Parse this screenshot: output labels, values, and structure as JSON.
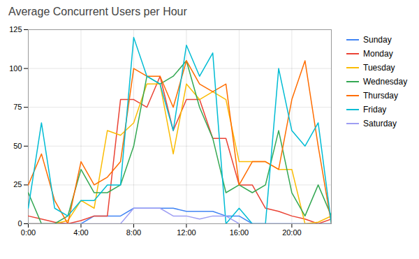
{
  "chart_data": {
    "type": "line",
    "title": "Average Concurrent Users per Hour",
    "x": [
      0,
      1,
      2,
      3,
      4,
      5,
      6,
      7,
      8,
      9,
      10,
      11,
      12,
      13,
      14,
      15,
      16,
      17,
      18,
      19,
      20,
      21,
      22,
      23
    ],
    "xlim": [
      0,
      23
    ],
    "xticks": [
      {
        "value": 0,
        "label": "0:00"
      },
      {
        "value": 4,
        "label": "4:00"
      },
      {
        "value": 8,
        "label": "8:00"
      },
      {
        "value": 12,
        "label": "12:00"
      },
      {
        "value": 16,
        "label": "16:00"
      },
      {
        "value": 20,
        "label": "20:00"
      }
    ],
    "ylim": [
      0,
      125
    ],
    "yticks": [
      0,
      25,
      50,
      75,
      100,
      125
    ],
    "grid": true,
    "legend": "right",
    "series": [
      {
        "name": "Sunday",
        "color": "#4285F4",
        "values": [
          0,
          0,
          0,
          0,
          0,
          5,
          5,
          5,
          10,
          10,
          10,
          10,
          8,
          8,
          8,
          5,
          5,
          0,
          0,
          0,
          0,
          0,
          0,
          0
        ]
      },
      {
        "name": "Monday",
        "color": "#EA4335",
        "values": [
          5,
          3,
          1,
          0,
          2,
          5,
          5,
          80,
          80,
          75,
          95,
          60,
          80,
          80,
          55,
          55,
          25,
          25,
          10,
          8,
          5,
          3,
          0,
          3
        ]
      },
      {
        "name": "Tuesday",
        "color": "#FBBC04",
        "values": [
          0,
          0,
          0,
          2,
          15,
          10,
          60,
          57,
          65,
          90,
          90,
          45,
          90,
          80,
          85,
          80,
          40,
          40,
          40,
          35,
          35,
          0,
          1,
          5
        ]
      },
      {
        "name": "Wednesday",
        "color": "#34A853",
        "values": [
          20,
          0,
          0,
          5,
          35,
          20,
          20,
          25,
          50,
          95,
          90,
          95,
          105,
          75,
          55,
          20,
          25,
          20,
          25,
          60,
          20,
          5,
          25,
          5
        ]
      },
      {
        "name": "Thursday",
        "color": "#FF6D00",
        "values": [
          25,
          45,
          15,
          0,
          40,
          25,
          30,
          40,
          100,
          95,
          95,
          75,
          105,
          90,
          85,
          90,
          25,
          40,
          40,
          35,
          80,
          105,
          50,
          0
        ]
      },
      {
        "name": "Friday",
        "color": "#00BCD4",
        "values": [
          10,
          65,
          10,
          5,
          15,
          15,
          25,
          25,
          120,
          95,
          90,
          60,
          115,
          95,
          110,
          0,
          10,
          0,
          0,
          100,
          60,
          50,
          65,
          0
        ]
      },
      {
        "name": "Saturday",
        "color": "#9E9EF3",
        "values": [
          0,
          0,
          0,
          0,
          0,
          0,
          0,
          0,
          10,
          10,
          10,
          5,
          5,
          3,
          5,
          5,
          0,
          0,
          0,
          0,
          0,
          0,
          0,
          0
        ]
      }
    ]
  }
}
